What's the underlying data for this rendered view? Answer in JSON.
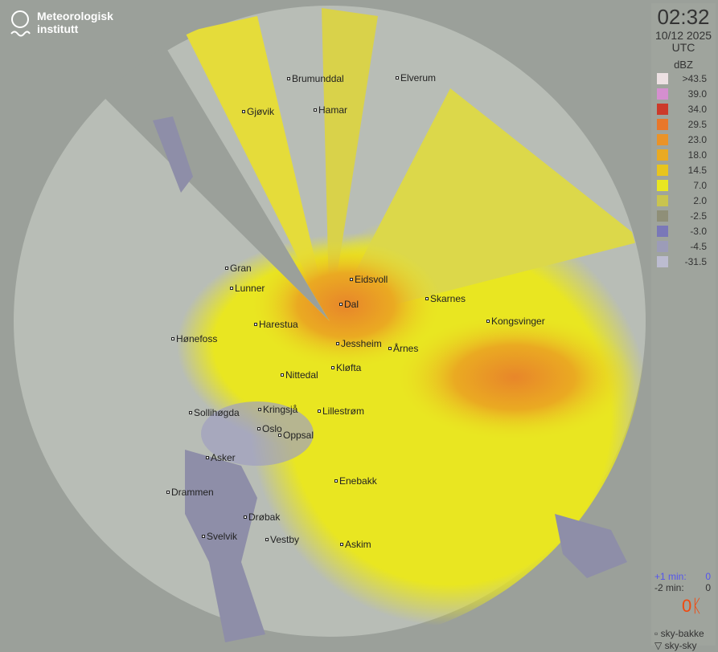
{
  "logo": {
    "line1": "Meteorologisk",
    "line2": "institutt"
  },
  "panel": {
    "time": "02:32",
    "date": "10/12 2025",
    "timezone": "UTC",
    "unit": "dBZ"
  },
  "legend": [
    {
      "label": ">43.5",
      "color": "#ece0e2"
    },
    {
      "label": "39.0",
      "color": "#d58fcf"
    },
    {
      "label": "34.0",
      "color": "#cc3a2a"
    },
    {
      "label": "29.5",
      "color": "#e8772a"
    },
    {
      "label": "23.0",
      "color": "#ea9328"
    },
    {
      "label": "18.0",
      "color": "#eaaa22"
    },
    {
      "label": "14.5",
      "color": "#e8c51e"
    },
    {
      "label": "7.0",
      "color": "#e9e621"
    },
    {
      "label": "2.0",
      "color": "#c9c44f"
    },
    {
      "label": "-2.5",
      "color": "#8f8f78"
    },
    {
      "label": "-3.0",
      "color": "#7a78b8"
    },
    {
      "label": "-4.5",
      "color": "#9c9cb8"
    },
    {
      "label": "-31.5",
      "color": "#bcbcd0"
    }
  ],
  "stats": {
    "plus1_label": "+1 min:",
    "plus1_value": "0",
    "minus2_label": "-2 min:",
    "minus2_value": "0",
    "lightning_count": "0"
  },
  "keys": {
    "ground": "sky-bakke",
    "cloud": "sky-sky"
  },
  "cities": [
    "Brumunddal",
    "Elverum",
    "Gjøvik",
    "Hamar",
    "Gran",
    "Eidsvoll",
    "Lunner",
    "Dal",
    "Skarnes",
    "Harestua",
    "Kongsvinger",
    "Hønefoss",
    "Jessheim",
    "Årnes",
    "Kløfta",
    "Nittedal",
    "Sollihøgda",
    "Kringsjå",
    "Lillestrøm",
    "Oslo",
    "Oppsal",
    "Asker",
    "Enebakk",
    "Drammen",
    "Drøbak",
    "Svelvik",
    "Vestby",
    "Askim"
  ]
}
